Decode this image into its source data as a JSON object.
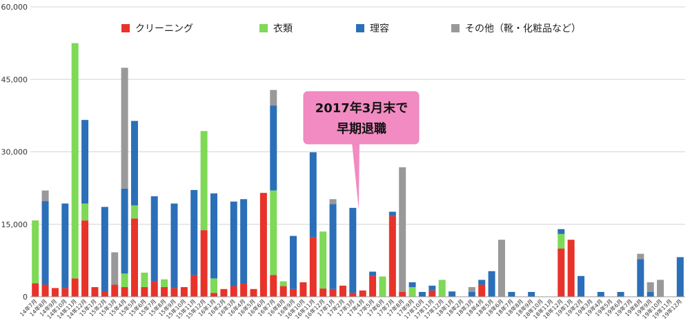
{
  "chart_data": {
    "type": "bar",
    "stacked": true,
    "ylim": [
      0,
      60000
    ],
    "yticks": [
      0,
      15000,
      30000,
      45000,
      60000
    ],
    "ytick_labels": [
      "0",
      "15,000",
      "30,000",
      "45,000",
      "60,000"
    ],
    "grid": true,
    "legend_position": "top",
    "categories": [
      "14年7月",
      "14年8月",
      "14年9月",
      "14年10月",
      "14年11月",
      "14年12月",
      "15年1月",
      "15年2月",
      "15年3月",
      "15年4月",
      "15年5月",
      "15年6月",
      "15年7月",
      "15年8月",
      "15年9月",
      "15年10月",
      "15年11月",
      "15年12月",
      "16年1月",
      "16年2月",
      "16年3月",
      "16年4月",
      "16年5月",
      "16年6月",
      "16年7月",
      "16年8月",
      "16年9月",
      "16年10月",
      "16年11月",
      "16年12月",
      "17年1月",
      "17年2月",
      "17年3月",
      "17年4月",
      "17年5月",
      "17年6月",
      "17年7月",
      "17年8月",
      "17年9月",
      "17年10月",
      "17年11月",
      "17年12月",
      "18年1月",
      "18年2月",
      "18年3月",
      "18年4月",
      "18年5月",
      "18年6月",
      "18年7月",
      "18年8月",
      "18年9月",
      "18年10月",
      "18年11月",
      "18年12月",
      "19年1月",
      "19年2月",
      "19年3月",
      "19年4月",
      "19年5月",
      "19年6月",
      "19年7月",
      "19年8月",
      "19年9月",
      "19年10月",
      "19年11月",
      "19年12月"
    ],
    "series": [
      {
        "name": "クリーニング",
        "color": "#e8332a",
        "values": [
          2800,
          2500,
          1800,
          1800,
          3800,
          15800,
          2000,
          1000,
          2500,
          2000,
          16200,
          2000,
          3200,
          2000,
          1800,
          2000,
          4500,
          13800,
          800,
          1600,
          2200,
          2700,
          1600,
          21500,
          4500,
          2200,
          1600,
          3000,
          12300,
          1700,
          1600,
          2300,
          800,
          1300,
          4300,
          0,
          16700,
          1000,
          0,
          0,
          1300,
          0,
          0,
          0,
          0,
          2500,
          0,
          0,
          0,
          0,
          0,
          0,
          0,
          10000,
          11800,
          0,
          0,
          0,
          0,
          0,
          0,
          0,
          0,
          0,
          0,
          0
        ]
      },
      {
        "name": "衣類",
        "color": "#7ed957",
        "values": [
          13000,
          0,
          0,
          0,
          48700,
          3500,
          0,
          0,
          0,
          2800,
          2700,
          3000,
          0,
          1600,
          0,
          0,
          0,
          20500,
          3000,
          0,
          0,
          0,
          0,
          0,
          17500,
          1000,
          0,
          0,
          0,
          11800,
          0,
          0,
          0,
          0,
          0,
          4200,
          0,
          0,
          2000,
          0,
          0,
          3500,
          0,
          0,
          0,
          0,
          0,
          0,
          0,
          0,
          0,
          0,
          0,
          3000,
          0,
          0,
          0,
          0,
          0,
          0,
          0,
          0,
          0,
          0,
          0,
          0
        ]
      },
      {
        "name": "理容",
        "color": "#2b6fb8",
        "values": [
          0,
          17300,
          0,
          17500,
          0,
          17300,
          0,
          17600,
          0,
          17600,
          17500,
          0,
          17600,
          0,
          17500,
          0,
          17600,
          0,
          17600,
          0,
          17500,
          17500,
          0,
          0,
          17600,
          0,
          11000,
          0,
          17600,
          0,
          17600,
          0,
          17600,
          0,
          900,
          0,
          900,
          0,
          1000,
          1000,
          1000,
          0,
          1100,
          0,
          1000,
          1000,
          5300,
          0,
          1000,
          0,
          1000,
          0,
          0,
          1000,
          0,
          4300,
          0,
          1000,
          0,
          1000,
          0,
          7800,
          1000,
          0,
          0,
          8200
        ]
      },
      {
        "name": "その他（靴・化粧品など）",
        "color": "#999999",
        "values": [
          0,
          2200,
          0,
          0,
          0,
          0,
          0,
          0,
          6700,
          25000,
          0,
          0,
          0,
          0,
          0,
          0,
          0,
          0,
          0,
          0,
          0,
          0,
          0,
          0,
          3200,
          0,
          0,
          0,
          0,
          0,
          1000,
          0,
          0,
          0,
          0,
          0,
          0,
          25800,
          0,
          0,
          0,
          0,
          0,
          0,
          1000,
          0,
          0,
          11800,
          0,
          0,
          0,
          0,
          0,
          0,
          0,
          0,
          0,
          0,
          0,
          0,
          0,
          1100,
          2000,
          3500,
          0,
          0
        ]
      }
    ],
    "annotation": {
      "lines": [
        "2017年3月末で",
        "早期退職"
      ],
      "fill": "#f28bc2",
      "points_to": "17年4月"
    }
  }
}
